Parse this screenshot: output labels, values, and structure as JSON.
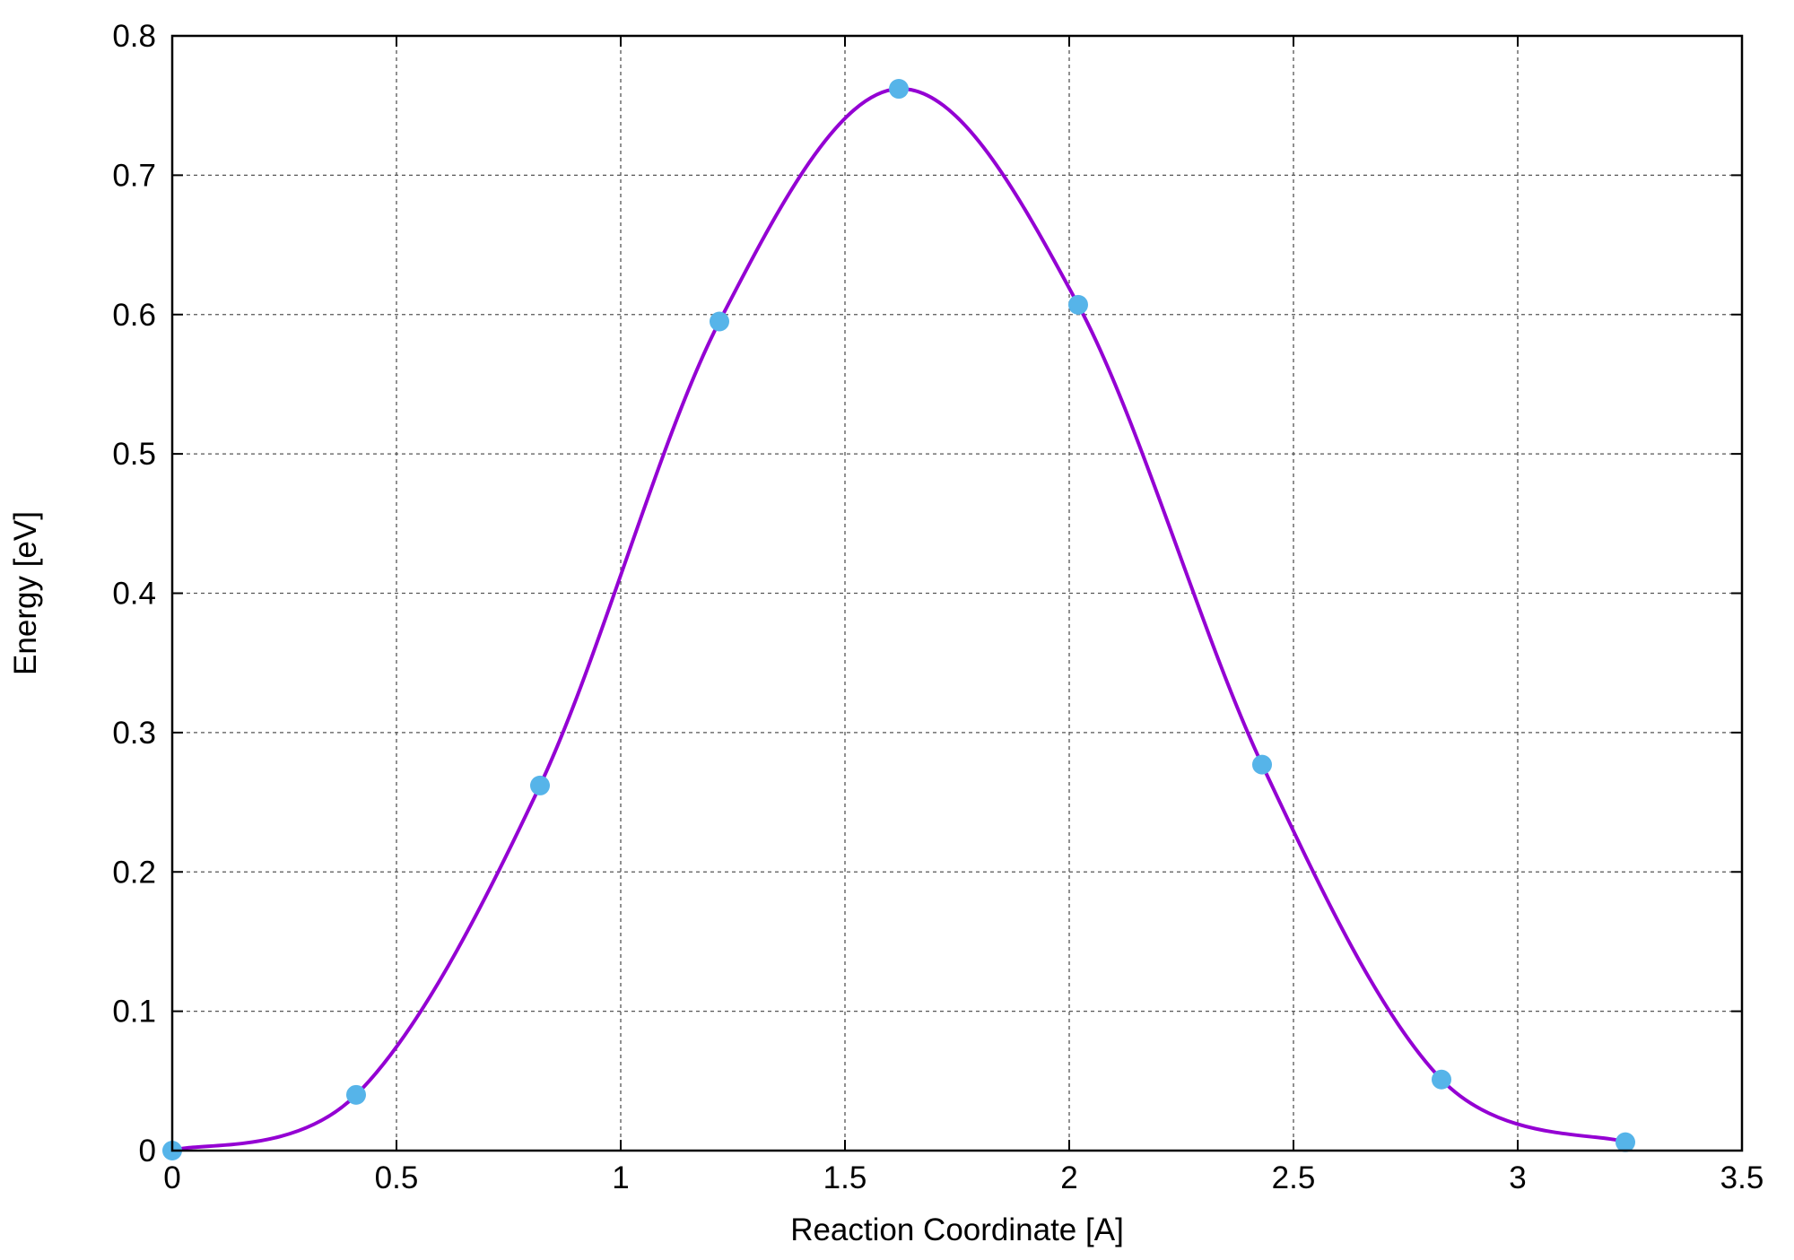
{
  "chart_data": {
    "type": "line",
    "xlabel": "Reaction Coordinate [A]",
    "ylabel": "Energy [eV]",
    "xlim": [
      0,
      3.5
    ],
    "ylim": [
      0,
      0.8
    ],
    "x_ticks": [
      "0",
      "0.5",
      "1",
      "1.5",
      "2",
      "2.5",
      "3",
      "3.5"
    ],
    "y_ticks": [
      "0",
      "0.1",
      "0.2",
      "0.3",
      "0.4",
      "0.5",
      "0.6",
      "0.7",
      "0.8"
    ],
    "grid": true,
    "legend": "none",
    "line_color": "#9400d3",
    "marker_color": "#56b4e9",
    "series": [
      {
        "x": [
          0,
          0.41,
          0.82,
          1.22,
          1.62,
          2.02,
          2.43,
          2.83,
          3.24
        ],
        "y": [
          0.0,
          0.04,
          0.262,
          0.595,
          0.762,
          0.607,
          0.277,
          0.051,
          0.006
        ]
      }
    ]
  }
}
